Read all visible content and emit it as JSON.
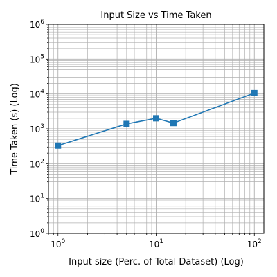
{
  "chart_data": {
    "type": "line",
    "title": "Input Size vs Time Taken",
    "xlabel": "Input size (Perc. of Total Dataset) (Log)",
    "ylabel": "Time Taken (s) (Log)",
    "xscale": "log",
    "yscale": "log",
    "xlim": [
      0.8,
      125
    ],
    "ylim": [
      1,
      1000000
    ],
    "grid": "major and minor",
    "marker": "square",
    "series": [
      {
        "color": "#1f77b4",
        "x": [
          1,
          5,
          10,
          15,
          100
        ],
        "y": [
          330,
          1380,
          2000,
          1460,
          10600
        ]
      }
    ],
    "xticks": [
      {
        "base": "10",
        "exp": "0"
      },
      {
        "base": "10",
        "exp": "1"
      },
      {
        "base": "10",
        "exp": "2"
      }
    ],
    "yticks": [
      {
        "base": "10",
        "exp": "0"
      },
      {
        "base": "10",
        "exp": "1"
      },
      {
        "base": "10",
        "exp": "2"
      },
      {
        "base": "10",
        "exp": "3"
      },
      {
        "base": "10",
        "exp": "4"
      },
      {
        "base": "10",
        "exp": "5"
      },
      {
        "base": "10",
        "exp": "6"
      }
    ]
  }
}
